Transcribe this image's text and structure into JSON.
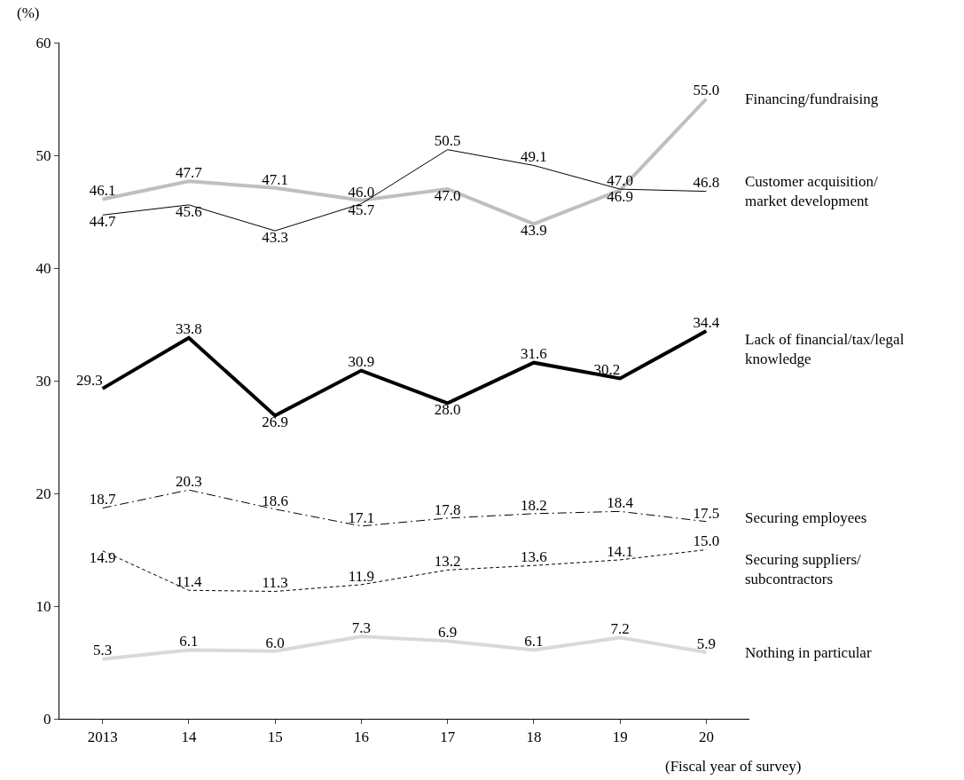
{
  "chart_data": {
    "type": "line",
    "xlabel": "(Fiscal year of survey)",
    "ylabel": "(%)",
    "categories": [
      "2013",
      "14",
      "15",
      "16",
      "17",
      "18",
      "19",
      "20"
    ],
    "series": [
      {
        "name": "Financing/fundraising",
        "color": "#bfbfbf",
        "line_style": "solid",
        "values": [
          46.1,
          47.7,
          47.1,
          46.0,
          47.0,
          43.9,
          46.9,
          55.0
        ],
        "value_labels": [
          "46.1",
          "47.7",
          "47.1",
          "46.0",
          "47.0",
          "43.9",
          "46.9",
          "55.0"
        ]
      },
      {
        "name": "Customer acquisition/\nmarket development",
        "color": "#000000",
        "line_style": "solid",
        "values": [
          44.7,
          45.6,
          43.3,
          45.7,
          50.5,
          49.1,
          47.0,
          46.8
        ],
        "value_labels": [
          "44.7",
          "45.6",
          "43.3",
          "45.7",
          "50.5",
          "49.1",
          "47.0",
          "46.8"
        ]
      },
      {
        "name": "Lack of financial/tax/legal\nknowledge",
        "color": "#000000",
        "line_style": "solid",
        "values": [
          29.3,
          33.8,
          26.9,
          30.9,
          28.0,
          31.6,
          30.2,
          34.4
        ],
        "value_labels": [
          "29.3",
          "33.8",
          "26.9",
          "30.9",
          "28.0",
          "31.6",
          "30.2",
          "34.4"
        ]
      },
      {
        "name": "Securing employees",
        "color": "#000000",
        "line_style": "dashdot",
        "values": [
          18.7,
          20.3,
          18.6,
          17.1,
          17.8,
          18.2,
          18.4,
          17.5
        ],
        "value_labels": [
          "18.7",
          "20.3",
          "18.6",
          "17.1",
          "17.8",
          "18.2",
          "18.4",
          "17.5"
        ]
      },
      {
        "name": "Securing suppliers/\nsubcontractors",
        "color": "#000000",
        "line_style": "dashed",
        "values": [
          14.9,
          11.4,
          11.3,
          11.9,
          13.2,
          13.6,
          14.1,
          15.0
        ],
        "value_labels": [
          "14.9",
          "11.4",
          "11.3",
          "11.9",
          "13.2",
          "13.6",
          "14.1",
          "15.0"
        ]
      },
      {
        "name": "Nothing in particular",
        "color": "#d9d9d9",
        "line_style": "solid",
        "values": [
          5.3,
          6.1,
          6.0,
          7.3,
          6.9,
          6.1,
          7.2,
          5.9
        ],
        "value_labels": [
          "5.3",
          "6.1",
          "6.0",
          "7.3",
          "6.9",
          "6.1",
          "7.2",
          "5.9"
        ]
      }
    ],
    "ylim": [
      0,
      60
    ],
    "yticks": [
      0,
      10,
      20,
      30,
      40,
      50,
      60
    ],
    "grid": false,
    "legend": false,
    "marker": "none"
  }
}
